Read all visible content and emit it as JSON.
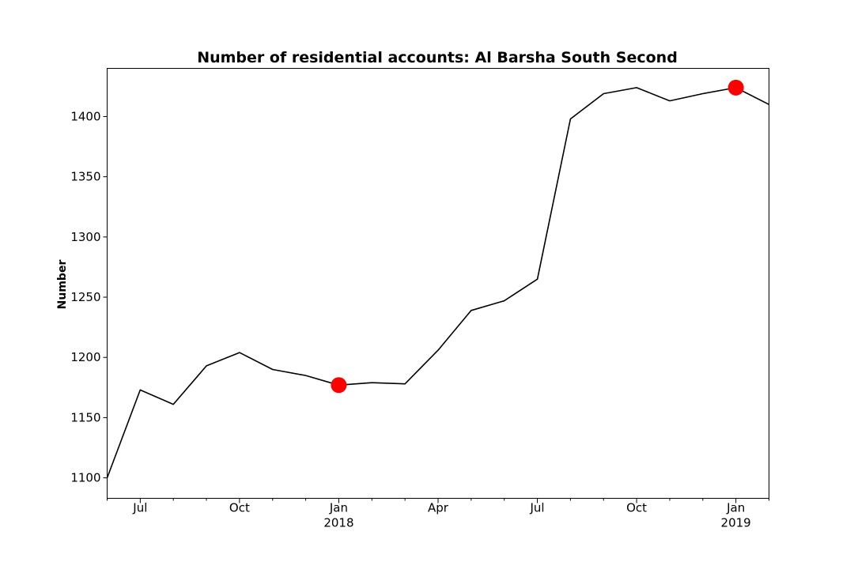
{
  "chart_data": {
    "type": "line",
    "title": "Number of residential accounts: Al Barsha South Second",
    "xlabel": "",
    "ylabel": "Number",
    "x": [
      "2017-06",
      "2017-07",
      "2017-08",
      "2017-09",
      "2017-10",
      "2017-11",
      "2017-12",
      "2018-01",
      "2018-02",
      "2018-03",
      "2018-04",
      "2018-05",
      "2018-06",
      "2018-07",
      "2018-08",
      "2018-09",
      "2018-10",
      "2018-11",
      "2018-12",
      "2019-01",
      "2019-02"
    ],
    "series": [
      {
        "values": [
          1100,
          1173,
          1161,
          1193,
          1204,
          1190,
          1185,
          1177,
          1179,
          1178,
          1206,
          1239,
          1247,
          1265,
          1398,
          1419,
          1424,
          1413,
          1419,
          1424,
          1410
        ],
        "color": "#000000"
      }
    ],
    "highlight_points": [
      {
        "x": "2018-01",
        "y": 1177,
        "color": "#ff0000"
      },
      {
        "x": "2019-01",
        "y": 1424,
        "color": "#ff0000"
      }
    ],
    "ylim": [
      1083,
      1440
    ],
    "yticks": [
      1100,
      1150,
      1200,
      1250,
      1300,
      1350,
      1400
    ],
    "xticks": [
      {
        "x": "2017-07",
        "label": "Jul",
        "sublabel": ""
      },
      {
        "x": "2017-10",
        "label": "Oct",
        "sublabel": ""
      },
      {
        "x": "2018-01",
        "label": "Jan",
        "sublabel": "2018"
      },
      {
        "x": "2018-04",
        "label": "Apr",
        "sublabel": ""
      },
      {
        "x": "2018-07",
        "label": "Jul",
        "sublabel": ""
      },
      {
        "x": "2018-10",
        "label": "Oct",
        "sublabel": ""
      },
      {
        "x": "2019-01",
        "label": "Jan",
        "sublabel": "2019"
      }
    ],
    "grid": false,
    "legend": "none"
  }
}
